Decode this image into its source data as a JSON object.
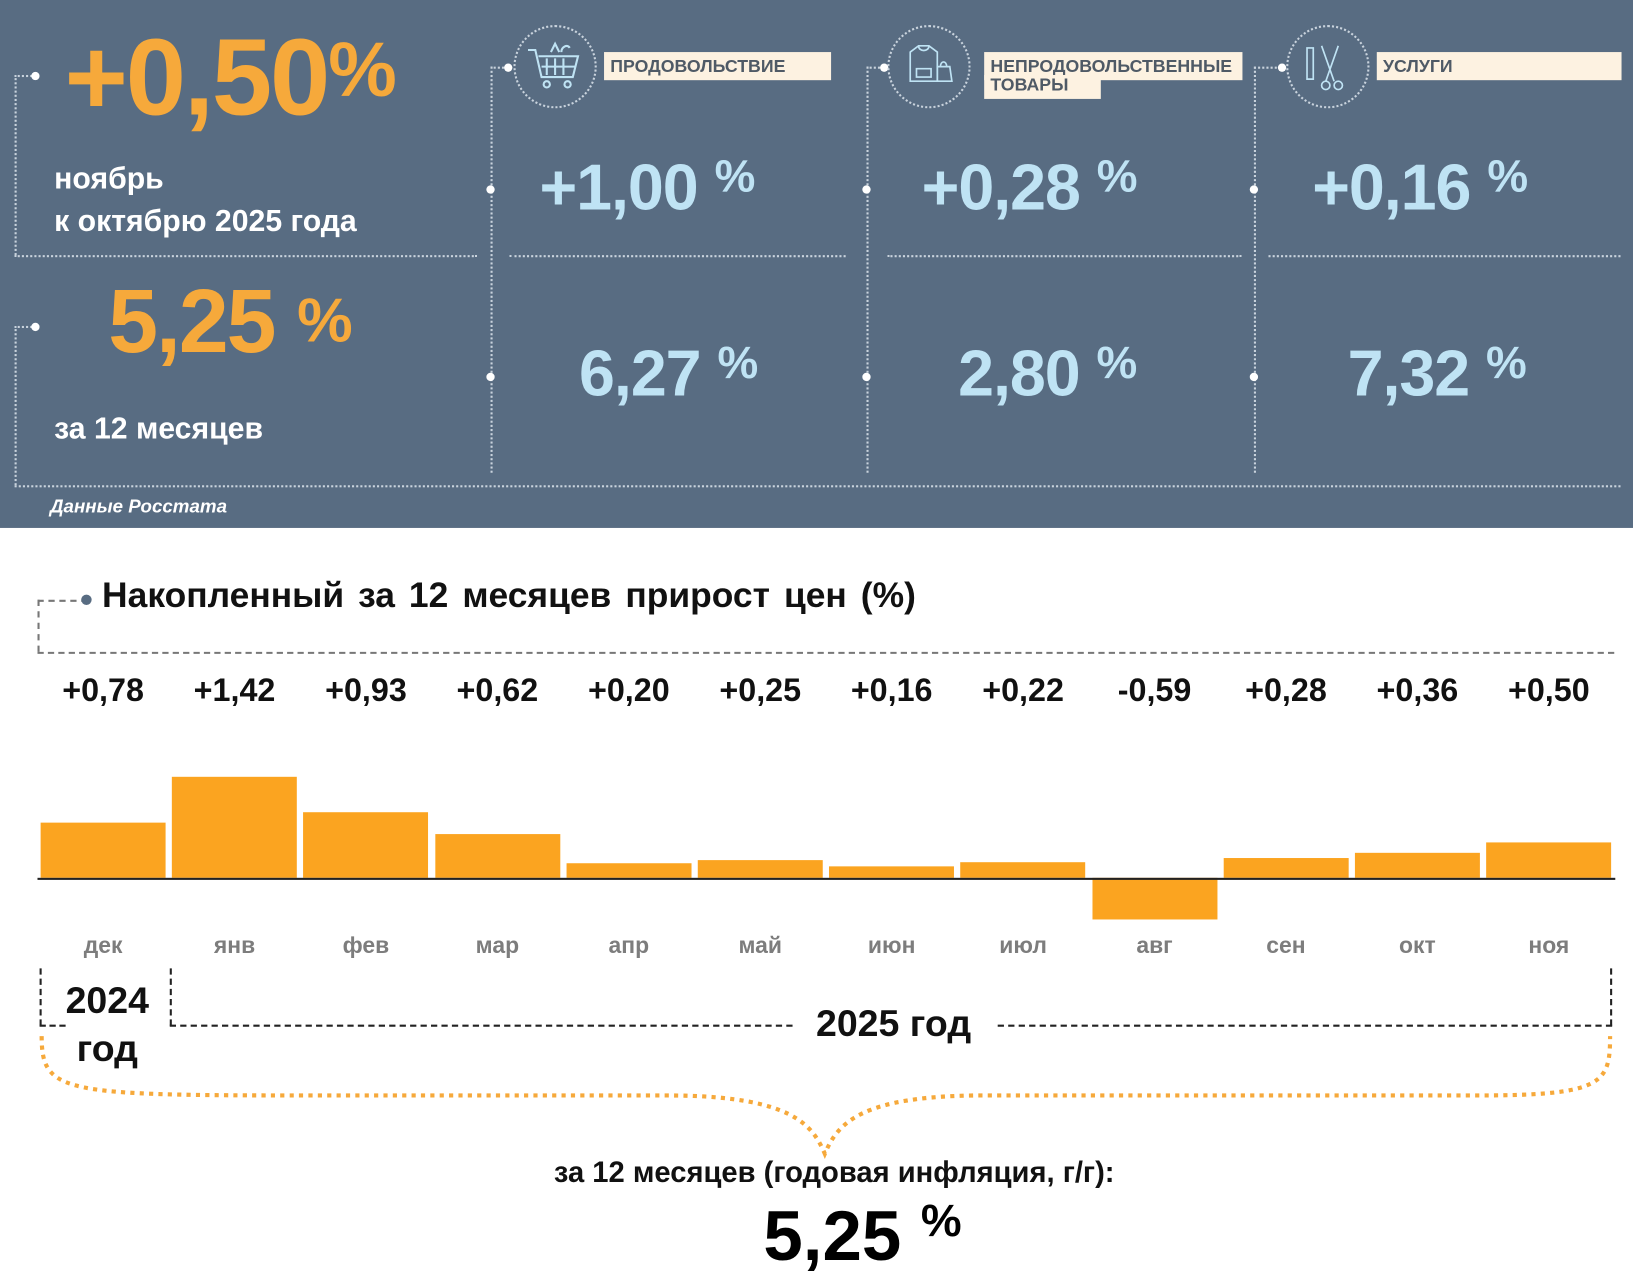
{
  "header": {
    "monthly_value": "+0,50",
    "percent_sign": "%",
    "monthly_caption_line1": "ноябрь",
    "monthly_caption_line2": "к октябрю 2025 года",
    "annual_value": "5,25",
    "annual_caption": "за 12 месяцев",
    "source": "Данные Росстата"
  },
  "categories": [
    {
      "icon": "shopping-cart-icon",
      "label": "ПРОДОВОЛЬСТВИЕ",
      "monthly": "+1,00",
      "annual": "6,27"
    },
    {
      "icon": "clothing-bag-icon",
      "label_line1": "НЕПРОДОВОЛЬСТВЕННЫЕ",
      "label_line2": "ТОВАРЫ",
      "monthly": "+0,28",
      "annual": "2,80"
    },
    {
      "icon": "scissors-comb-icon",
      "label": "УСЛУГИ",
      "monthly": "+0,16",
      "annual": "7,32"
    }
  ],
  "chart_data": {
    "type": "bar",
    "title": "Накопленный за 12 месяцев прирост цен (%)",
    "categories": [
      "дек",
      "янв",
      "фев",
      "мар",
      "апр",
      "май",
      "июн",
      "июл",
      "авг",
      "сен",
      "окт",
      "ноя"
    ],
    "values": [
      0.78,
      1.42,
      0.93,
      0.62,
      0.2,
      0.25,
      0.16,
      0.22,
      -0.59,
      0.28,
      0.36,
      0.5
    ],
    "value_labels": [
      "+0,78",
      "+1,42",
      "+0,93",
      "+0,62",
      "+0,20",
      "+0,25",
      "+0,16",
      "+0,22",
      "-0,59",
      "+0,28",
      "+0,36",
      "+0,50"
    ],
    "bar_color": "#fba420",
    "year_2024": "2024 год",
    "year_2024_line1": "2024",
    "year_2024_line2": "год",
    "year_2025": "2025 год",
    "summary_caption": "за 12 месяцев (годовая инфляция, г/г):",
    "summary_value": "5,25",
    "summary_percent": "%"
  }
}
